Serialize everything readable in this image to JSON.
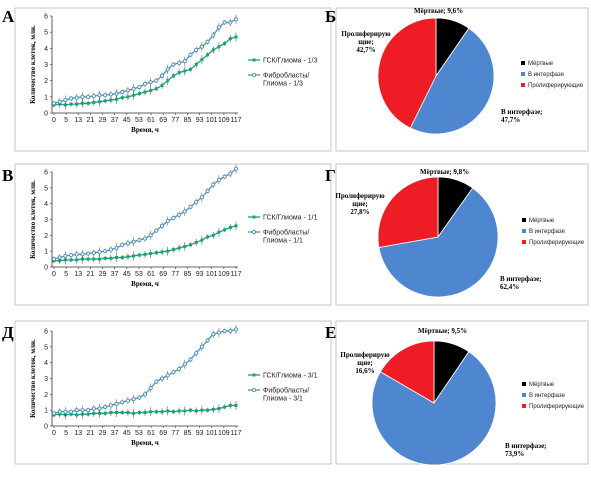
{
  "colors": {
    "green": "#1aa37a",
    "blue": "#4f8fc0",
    "pie_dead": "#000000",
    "pie_interphase": "#4f86d0",
    "pie_prolif": "#ee1c24",
    "frame": "#b8b8b8"
  },
  "chart_data": [
    {
      "id": "A",
      "letter": "А",
      "type": "line",
      "ylabel": "Количество клеток, млн.",
      "xlabel": "Время, ч",
      "ylim": [
        0,
        6
      ],
      "yticks": [
        0,
        1,
        2,
        3,
        4,
        5,
        6
      ],
      "x_tick_labels": [
        "0",
        "5",
        "13",
        "21",
        "29",
        "37",
        "45",
        "53",
        "61",
        "69",
        "77",
        "85",
        "93",
        "101",
        "109",
        "117"
      ],
      "series": [
        {
          "name": "ГСК/Глиома  - 1/3",
          "color_key": "green",
          "values": [
            0.5,
            0.55,
            0.5,
            0.55,
            0.55,
            0.6,
            0.6,
            0.65,
            0.7,
            0.75,
            0.8,
            0.85,
            0.95,
            1.0,
            1.1,
            1.2,
            1.3,
            1.4,
            1.5,
            1.7,
            2.0,
            2.3,
            2.5,
            2.6,
            2.7,
            3.0,
            3.3,
            3.6,
            3.9,
            4.1,
            4.3,
            4.6,
            4.7
          ]
        },
        {
          "name": "Фибробласты/ Глиома - 1/3",
          "color_key": "blue",
          "values": [
            0.6,
            0.7,
            0.8,
            0.9,
            0.95,
            1.0,
            1.0,
            1.05,
            1.1,
            1.1,
            1.15,
            1.2,
            1.3,
            1.4,
            1.5,
            1.6,
            1.8,
            1.9,
            2.0,
            2.3,
            2.7,
            3.0,
            3.1,
            3.2,
            3.6,
            3.9,
            4.1,
            4.4,
            4.8,
            5.3,
            5.6,
            5.6,
            5.8
          ]
        }
      ]
    },
    {
      "id": "B",
      "letter": "В",
      "type": "line",
      "ylabel": "Количество клеток, млн.",
      "xlabel": "Время, ч",
      "ylim": [
        0,
        6
      ],
      "yticks": [
        0,
        1,
        2,
        3,
        4,
        5,
        6
      ],
      "x_tick_labels": [
        "0",
        "5",
        "13",
        "21",
        "29",
        "37",
        "45",
        "53",
        "61",
        "69",
        "77",
        "85",
        "93",
        "101",
        "109",
        "117"
      ],
      "series": [
        {
          "name": "ГСК/Глиома  - 1/1",
          "color_key": "green",
          "values": [
            0.4,
            0.4,
            0.45,
            0.45,
            0.45,
            0.5,
            0.5,
            0.5,
            0.5,
            0.55,
            0.55,
            0.6,
            0.6,
            0.65,
            0.7,
            0.75,
            0.8,
            0.85,
            0.9,
            0.95,
            1.0,
            1.1,
            1.2,
            1.3,
            1.4,
            1.55,
            1.7,
            1.9,
            2.0,
            2.2,
            2.35,
            2.5,
            2.6
          ]
        },
        {
          "name": "Фибробласты/ Глиома - 1/1",
          "color_key": "blue",
          "values": [
            0.5,
            0.6,
            0.7,
            0.75,
            0.8,
            0.8,
            0.85,
            0.9,
            0.95,
            1.0,
            1.1,
            1.2,
            1.4,
            1.5,
            1.6,
            1.7,
            1.8,
            2.0,
            2.3,
            2.6,
            2.9,
            3.1,
            3.3,
            3.5,
            3.8,
            4.1,
            4.4,
            4.8,
            5.2,
            5.5,
            5.7,
            5.9,
            6.2
          ]
        }
      ]
    },
    {
      "id": "D",
      "letter": "Д",
      "type": "line",
      "ylabel": "Количество клеток, млн.",
      "xlabel": "Время, ч",
      "ylim": [
        0,
        6
      ],
      "yticks": [
        0,
        1,
        2,
        3,
        4,
        5,
        6
      ],
      "x_tick_labels": [
        "0",
        "5",
        "13",
        "21",
        "29",
        "37",
        "45",
        "53",
        "61",
        "69",
        "77",
        "85",
        "93",
        "101",
        "109",
        "117"
      ],
      "series": [
        {
          "name": "ГСК/Глиома - 3/1",
          "color_key": "green",
          "values": [
            0.7,
            0.75,
            0.7,
            0.75,
            0.7,
            0.75,
            0.75,
            0.8,
            0.8,
            0.8,
            0.85,
            0.85,
            0.85,
            0.85,
            0.8,
            0.85,
            0.85,
            0.9,
            0.9,
            0.9,
            0.95,
            0.9,
            0.95,
            0.95,
            1.0,
            0.95,
            1.0,
            1.0,
            1.05,
            1.1,
            1.2,
            1.3,
            1.3
          ]
        },
        {
          "name": "Фибробласты/ Глиома - 3/1",
          "color_key": "blue",
          "values": [
            0.8,
            0.9,
            0.9,
            0.9,
            1.0,
            1.0,
            1.0,
            1.1,
            1.1,
            1.2,
            1.3,
            1.4,
            1.5,
            1.6,
            1.7,
            1.8,
            2.0,
            2.4,
            2.8,
            3.0,
            3.2,
            3.4,
            3.6,
            3.9,
            4.2,
            4.6,
            5.0,
            5.4,
            5.8,
            5.9,
            6.0,
            6.0,
            6.1
          ]
        }
      ]
    },
    {
      "id": "Bpie",
      "letter": "Б",
      "type": "pie",
      "legend": [
        "Мёртвые",
        "В интерфазе",
        "Пролиферирующие"
      ],
      "slices": [
        {
          "label_lines": [
            "Мёртвые; 9,6%"
          ],
          "value": 9.6,
          "color_key": "pie_dead"
        },
        {
          "label_lines": [
            "В интерфазе;",
            "47,7%"
          ],
          "value": 47.7,
          "color_key": "pie_interphase"
        },
        {
          "label_lines": [
            "Пролиферирую",
            "щие;",
            "42,7%"
          ],
          "value": 42.7,
          "color_key": "pie_prolif"
        }
      ]
    },
    {
      "id": "Gpie",
      "letter": "Г",
      "type": "pie",
      "legend": [
        "Мёртвые",
        "В интерфазе",
        "Пролиферирующие"
      ],
      "slices": [
        {
          "label_lines": [
            "Мёртвые; 9,8%"
          ],
          "value": 9.8,
          "color_key": "pie_dead"
        },
        {
          "label_lines": [
            "В интерфазе;",
            "62,4%"
          ],
          "value": 62.4,
          "color_key": "pie_interphase"
        },
        {
          "label_lines": [
            "Пролиферирую",
            "щие;",
            "27,8%"
          ],
          "value": 27.8,
          "color_key": "pie_prolif"
        }
      ]
    },
    {
      "id": "Epie",
      "letter": "Е",
      "type": "pie",
      "legend": [
        "Мёртвые",
        "В интерфазе",
        "Пролиферирующие"
      ],
      "slices": [
        {
          "label_lines": [
            "Мёртвые; 9,5%"
          ],
          "value": 9.5,
          "color_key": "pie_dead"
        },
        {
          "label_lines": [
            "В интерфазе;",
            "73,9%"
          ],
          "value": 73.9,
          "color_key": "pie_interphase"
        },
        {
          "label_lines": [
            "Пролиферирую",
            "щие;",
            "16,6%"
          ],
          "value": 16.6,
          "color_key": "pie_prolif"
        }
      ]
    }
  ]
}
